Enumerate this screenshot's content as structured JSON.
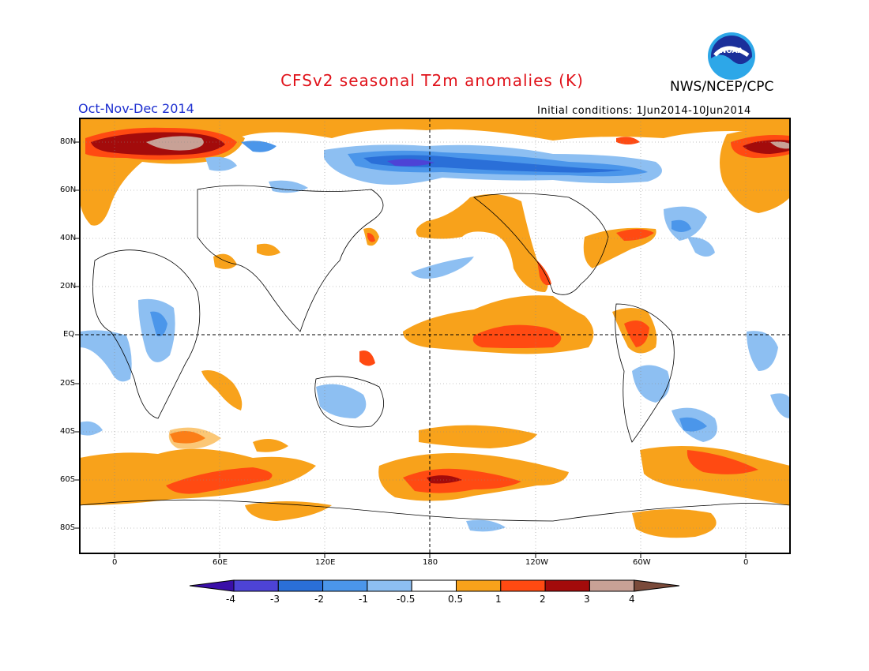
{
  "title": "CFSv2 seasonal T2m anomalies (K)",
  "agency": "NWS/NCEP/CPC",
  "logo_text": "NOAA",
  "season": "Oct-Nov-Dec 2014",
  "initial_conditions": "Initial conditions: 1Jun2014-10Jun2014",
  "lat_labels": [
    "80N",
    "60N",
    "40N",
    "20N",
    "EQ",
    "20S",
    "40S",
    "60S",
    "80S"
  ],
  "lon_labels": [
    "0",
    "60E",
    "120E",
    "180",
    "120W",
    "60W",
    "0"
  ],
  "colorbar": {
    "labels": [
      "-4",
      "-3",
      "-2",
      "-1",
      "-0.5",
      "0.5",
      "1",
      "2",
      "3",
      "4"
    ],
    "colors": [
      "#3a0fa8",
      "#4d43d6",
      "#2a6fd8",
      "#4b96ea",
      "#8dbff2",
      "#ffffff",
      "#f8a21b",
      "#ff4a12",
      "#a30b0b",
      "#c8a196",
      "#7a4a3a"
    ]
  }
}
